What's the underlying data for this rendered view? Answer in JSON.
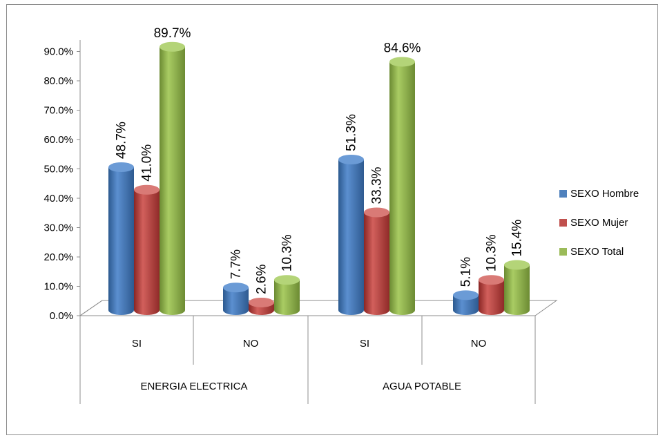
{
  "chart_data": {
    "type": "bar",
    "style": "3d-cylinder",
    "groups": [
      {
        "label": "ENERGIA ELECTRICA",
        "categories": [
          "SI",
          "NO"
        ]
      },
      {
        "label": "AGUA POTABLE",
        "categories": [
          "SI",
          "NO"
        ]
      }
    ],
    "categories": [
      "SI",
      "NO",
      "SI",
      "NO"
    ],
    "series": [
      {
        "name": "SEXO Hombre",
        "color": "#4f81bd",
        "values": [
          48.7,
          7.7,
          51.3,
          5.1
        ],
        "labels": [
          "48.7%",
          "7.7%",
          "51.3%",
          "5.1%"
        ]
      },
      {
        "name": "SEXO Mujer",
        "color": "#c0504d",
        "values": [
          41.0,
          2.6,
          33.3,
          10.3
        ],
        "labels": [
          "41.0%",
          "2.6%",
          "33.3%",
          "10.3%"
        ]
      },
      {
        "name": "SEXO Total",
        "color": "#9bbb59",
        "values": [
          89.7,
          10.3,
          84.6,
          15.4
        ],
        "labels": [
          "89.7%",
          "10.3%",
          "84.6%",
          "15.4%"
        ]
      }
    ],
    "yticks": [
      "0.0%",
      "10.0%",
      "20.0%",
      "30.0%",
      "40.0%",
      "50.0%",
      "60.0%",
      "70.0%",
      "80.0%",
      "90.0%"
    ],
    "ylim": [
      0,
      90
    ],
    "grid": false,
    "legend_position": "right"
  }
}
